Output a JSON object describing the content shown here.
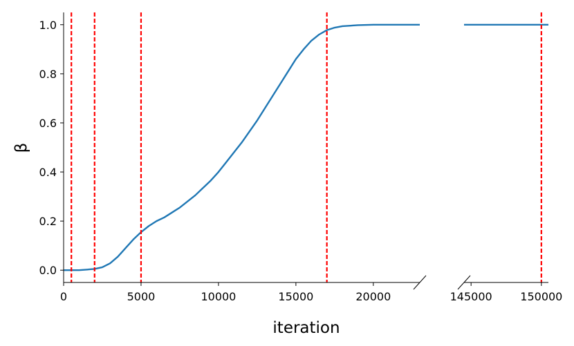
{
  "chart_data": {
    "type": "line",
    "xlabel": "iteration",
    "ylabel": "β",
    "broken_x_axis": true,
    "x_segments": [
      {
        "xlim": [
          0,
          23000
        ],
        "xticks": [
          0,
          5000,
          10000,
          15000,
          20000
        ]
      },
      {
        "xlim": [
          144500,
          150500
        ],
        "xticks": [
          145000,
          150000
        ]
      }
    ],
    "ylim": [
      -0.05,
      1.05
    ],
    "yticks": [
      0.0,
      0.2,
      0.4,
      0.6,
      0.8,
      1.0
    ],
    "ytick_labels": [
      "0.0",
      "0.2",
      "0.4",
      "0.6",
      "0.8",
      "1.0"
    ],
    "xtick_labels": [
      "0",
      "5000",
      "10000",
      "15000",
      "20000",
      "145000",
      "150000"
    ],
    "grid": false,
    "series": [
      {
        "color": "#1f77b4",
        "x": [
          0,
          1000,
          2000,
          2500,
          3000,
          3500,
          4000,
          4500,
          5000,
          5500,
          6000,
          6500,
          7000,
          7500,
          8000,
          8500,
          9000,
          9500,
          10000,
          10500,
          11000,
          11500,
          12000,
          12500,
          13000,
          13500,
          14000,
          14500,
          15000,
          15500,
          16000,
          16500,
          17000,
          17500,
          18000,
          19000,
          20000,
          21000,
          22000,
          23000,
          144500,
          150500
        ],
        "y": [
          0.0,
          0.0,
          0.005,
          0.012,
          0.028,
          0.055,
          0.09,
          0.125,
          0.155,
          0.18,
          0.2,
          0.215,
          0.235,
          0.255,
          0.28,
          0.305,
          0.335,
          0.365,
          0.4,
          0.44,
          0.48,
          0.52,
          0.565,
          0.61,
          0.66,
          0.71,
          0.76,
          0.81,
          0.86,
          0.9,
          0.935,
          0.96,
          0.978,
          0.988,
          0.994,
          0.998,
          1.0,
          1.0,
          1.0,
          1.0,
          1.0,
          1.0
        ]
      }
    ],
    "vlines": {
      "color": "#ff0000",
      "style": "dashed",
      "x": [
        500,
        2000,
        5000,
        17000,
        150000
      ]
    }
  }
}
